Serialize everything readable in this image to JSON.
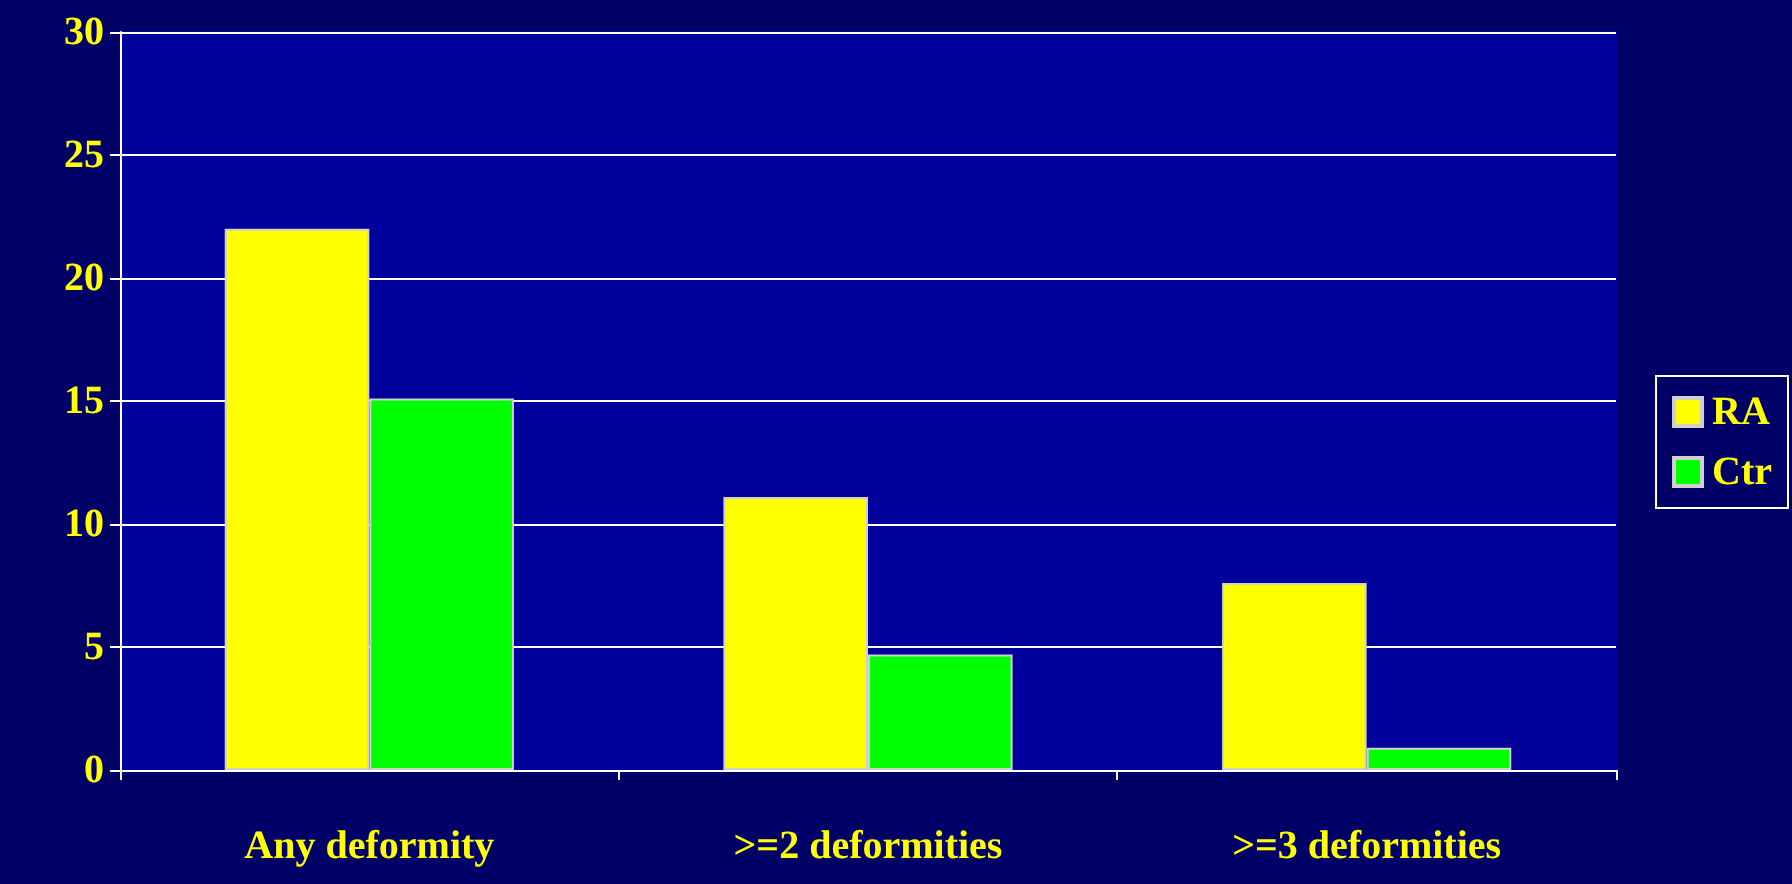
{
  "chart_data": {
    "type": "bar",
    "categories": [
      "Any deformity",
      ">=2 deformities",
      ">=3 deformities"
    ],
    "series": [
      {
        "name": "RA",
        "color": "#ffff00",
        "values": [
          22,
          11.1,
          7.6
        ]
      },
      {
        "name": "Ctr",
        "color": "#00ff00",
        "values": [
          15.1,
          4.7,
          0.9
        ]
      }
    ],
    "ylim": [
      0,
      30
    ],
    "yticks": [
      0,
      5,
      10,
      15,
      20,
      25,
      30
    ],
    "grid": "y",
    "legend": "right"
  }
}
